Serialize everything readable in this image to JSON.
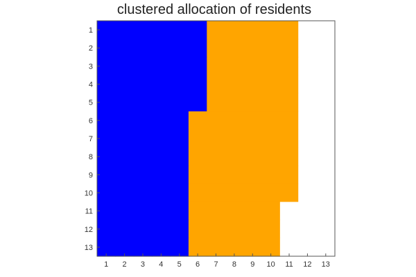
{
  "chart_data": {
    "type": "heatmap",
    "title": "clustered allocation of residents",
    "xlabel": "",
    "ylabel": "",
    "x_ticks": [
      "1",
      "2",
      "3",
      "4",
      "5",
      "6",
      "7",
      "8",
      "9",
      "10",
      "11",
      "12",
      "13"
    ],
    "y_ticks": [
      "1",
      "2",
      "3",
      "4",
      "5",
      "6",
      "7",
      "8",
      "9",
      "10",
      "11",
      "12",
      "13"
    ],
    "colors": {
      "0": "#ffffff",
      "1": "#0000ff",
      "2": "#ffa500"
    },
    "grid": [
      [
        1,
        1,
        1,
        1,
        1,
        1,
        2,
        2,
        2,
        2,
        2,
        0,
        0
      ],
      [
        1,
        1,
        1,
        1,
        1,
        1,
        2,
        2,
        2,
        2,
        2,
        0,
        0
      ],
      [
        1,
        1,
        1,
        1,
        1,
        1,
        2,
        2,
        2,
        2,
        2,
        0,
        0
      ],
      [
        1,
        1,
        1,
        1,
        1,
        1,
        2,
        2,
        2,
        2,
        2,
        0,
        0
      ],
      [
        1,
        1,
        1,
        1,
        1,
        1,
        2,
        2,
        2,
        2,
        2,
        0,
        0
      ],
      [
        1,
        1,
        1,
        1,
        1,
        2,
        2,
        2,
        2,
        2,
        2,
        0,
        0
      ],
      [
        1,
        1,
        1,
        1,
        1,
        2,
        2,
        2,
        2,
        2,
        2,
        0,
        0
      ],
      [
        1,
        1,
        1,
        1,
        1,
        2,
        2,
        2,
        2,
        2,
        2,
        0,
        0
      ],
      [
        1,
        1,
        1,
        1,
        1,
        2,
        2,
        2,
        2,
        2,
        2,
        0,
        0
      ],
      [
        1,
        1,
        1,
        1,
        1,
        2,
        2,
        2,
        2,
        2,
        2,
        0,
        0
      ],
      [
        1,
        1,
        1,
        1,
        1,
        2,
        2,
        2,
        2,
        2,
        0,
        0,
        0
      ],
      [
        1,
        1,
        1,
        1,
        1,
        2,
        2,
        2,
        2,
        2,
        0,
        0,
        0
      ],
      [
        1,
        1,
        1,
        1,
        1,
        2,
        2,
        2,
        2,
        2,
        0,
        0,
        0
      ]
    ]
  }
}
